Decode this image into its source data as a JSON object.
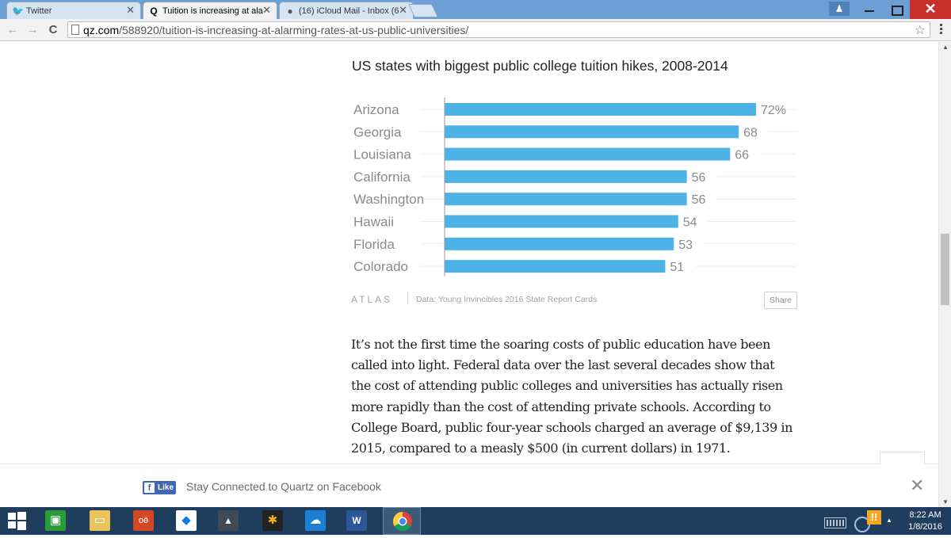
{
  "browser": {
    "tabs": [
      {
        "title": "Twitter",
        "icon": "twitter-bird-icon",
        "active": false
      },
      {
        "title": "Tuition is increasing at ala",
        "icon": "quartz-q-icon",
        "active": true
      },
      {
        "title": "(16) iCloud Mail - Inbox (6",
        "icon": "apple-icon",
        "active": false
      }
    ],
    "url_host": "qz.com",
    "url_path": "/588920/tuition-is-increasing-at-alarming-rates-at-us-public-universities/"
  },
  "chart_data": {
    "type": "bar",
    "orientation": "horizontal",
    "title": "US states with biggest public college tuition hikes, 2008-2014",
    "categories": [
      "Arizona",
      "Georgia",
      "Louisiana",
      "California",
      "Washington",
      "Hawaii",
      "Florida",
      "Colorado"
    ],
    "values": [
      72,
      68,
      66,
      56,
      56,
      54,
      53,
      51
    ],
    "value_labels": [
      "72%",
      "68",
      "66",
      "56",
      "56",
      "54",
      "53",
      "51"
    ],
    "xlim": [
      0,
      72
    ],
    "bar_color": "#4db3e6",
    "source": "Data: Young Invincibles 2016 State Report Cards",
    "brand": "ATLAS",
    "share_label": "Share"
  },
  "article": {
    "lines": [
      "It’s not the first time the soaring costs of public education have been",
      "called into light. Federal data over the last several decades show that",
      "the cost of attending public colleges and universities has actually risen",
      "more rapidly than the cost of attending private schools. According to",
      "College Board, public four-year schools charged an average of $9,139 in",
      "2015, compared to a measly $500 (in current dollars) in 1971."
    ]
  },
  "facebook_bar": {
    "like_label": "Like",
    "text": "Stay Connected to Quartz on Facebook"
  },
  "taskbar": {
    "time": "8:22 AM",
    "date": "1/8/2016",
    "tray_alert": "!!"
  }
}
